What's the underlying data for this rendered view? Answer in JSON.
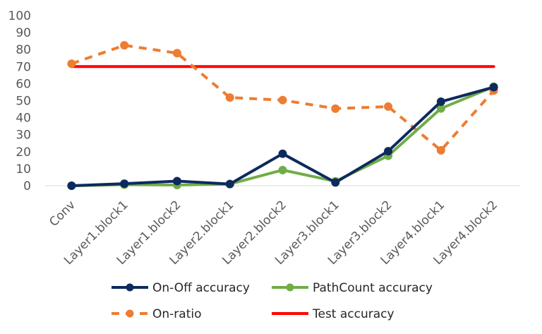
{
  "chart_data": {
    "type": "line",
    "title": "",
    "xlabel": "",
    "ylabel": "",
    "ylim": [
      0,
      100
    ],
    "yticks": [
      0,
      10,
      20,
      30,
      40,
      50,
      60,
      70,
      80,
      90,
      100
    ],
    "categories": [
      "Conv",
      "Layer1.block1",
      "Layer1.block2",
      "Layer2.block1",
      "Layer2.block2",
      "Layer3.block1",
      "Layer3.block2",
      "Layer4.block1",
      "Layer4.block2"
    ],
    "legend_position": "bottom",
    "series": [
      {
        "name": "On-Off accuracy",
        "color": "#0d2a5e",
        "style": "solid-marker",
        "values": [
          0,
          1.2,
          2.7,
          1.0,
          18.8,
          1.9,
          20.3,
          49.4,
          57.9
        ]
      },
      {
        "name": "PathCount accuracy",
        "color": "#70ad47",
        "style": "solid-marker",
        "values": [
          0,
          0.6,
          0.4,
          1.0,
          9.2,
          2.6,
          17.6,
          45.4,
          58.2
        ]
      },
      {
        "name": "On-ratio",
        "color": "#ed7d31",
        "style": "dashed-marker",
        "values": [
          71.7,
          82.5,
          77.9,
          51.8,
          50.3,
          45.3,
          46.5,
          20.8,
          55.9
        ]
      },
      {
        "name": "Test accuracy",
        "color": "#ff0000",
        "style": "solid",
        "values": [
          70,
          70,
          70,
          70,
          70,
          70,
          70,
          70,
          70
        ]
      }
    ]
  }
}
